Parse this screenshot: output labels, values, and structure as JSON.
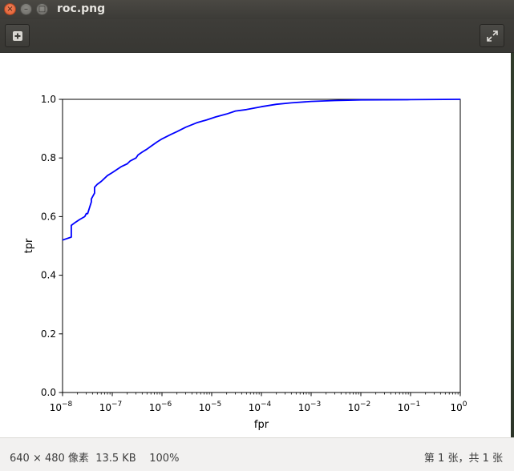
{
  "window": {
    "title": "roc.png",
    "close_glyph": "×",
    "minimize_glyph": "–",
    "maximize_glyph": "□"
  },
  "toolbar": {
    "left_icon": "image-properties-icon",
    "right_icon": "fullscreen-icon"
  },
  "status": {
    "dimensions": "640 × 480 像素",
    "filesize": "13.5 KB",
    "zoom": "100%",
    "position": "第 1 张，共 1 张"
  },
  "colors": {
    "line": "#0000ff",
    "titlebar": "#3c3b37",
    "close_button": "#e05a2b"
  },
  "chart_data": {
    "type": "line",
    "xscale": "log",
    "xlabel": "fpr",
    "ylabel": "tpr",
    "xlim": [
      1e-08,
      1
    ],
    "ylim": [
      0,
      1
    ],
    "xticks": [
      {
        "base": "10",
        "exp": "−8"
      },
      {
        "base": "10",
        "exp": "−7"
      },
      {
        "base": "10",
        "exp": "−6"
      },
      {
        "base": "10",
        "exp": "−5"
      },
      {
        "base": "10",
        "exp": "−4"
      },
      {
        "base": "10",
        "exp": "−3"
      },
      {
        "base": "10",
        "exp": "−2"
      },
      {
        "base": "10",
        "exp": "−1"
      },
      {
        "base": "10",
        "exp": "0"
      }
    ],
    "yticks": [
      "0.0",
      "0.2",
      "0.4",
      "0.6",
      "0.8",
      "1.0"
    ],
    "series": [
      {
        "x": [
          1e-08,
          1.5e-08,
          1.5e-08,
          1.8e-08,
          2.2e-08,
          2.8e-08,
          3e-08,
          3.2e-08,
          3.8e-08,
          3.8e-08,
          4.4e-08,
          4.4e-08,
          5e-08,
          6e-08,
          8e-08,
          1e-07,
          1.5e-07,
          2e-07,
          2.3e-07,
          3e-07,
          3.3e-07,
          4e-07,
          5e-07,
          6e-07,
          8e-07,
          1e-06,
          1.5e-06,
          2e-06,
          3e-06,
          5e-06,
          8e-06,
          1.2e-05,
          2e-05,
          3e-05,
          5e-05,
          0.0001,
          0.0002,
          0.0004,
          0.001,
          0.003,
          0.01,
          0.1,
          1
        ],
        "y": [
          0.52,
          0.53,
          0.57,
          0.58,
          0.59,
          0.6,
          0.61,
          0.61,
          0.65,
          0.66,
          0.68,
          0.7,
          0.71,
          0.72,
          0.74,
          0.75,
          0.77,
          0.78,
          0.79,
          0.8,
          0.81,
          0.82,
          0.83,
          0.84,
          0.855,
          0.865,
          0.88,
          0.89,
          0.905,
          0.92,
          0.93,
          0.94,
          0.95,
          0.96,
          0.965,
          0.975,
          0.983,
          0.988,
          0.993,
          0.996,
          0.998,
          0.999,
          1.0
        ]
      }
    ]
  }
}
